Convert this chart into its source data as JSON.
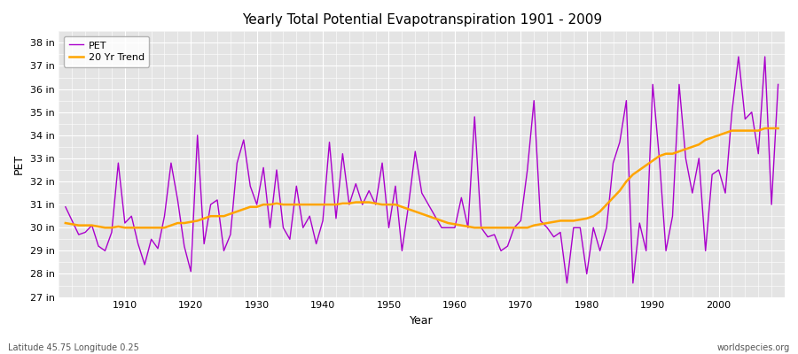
{
  "title": "Yearly Total Potential Evapotranspiration 1901 - 2009",
  "xlabel": "Year",
  "ylabel": "PET",
  "subtitle_left": "Latitude 45.75 Longitude 0.25",
  "subtitle_right": "worldspecies.org",
  "pet_color": "#AA00CC",
  "trend_color": "#FFA500",
  "fig_bg_color": "#FFFFFF",
  "plot_bg_color": "#E4E4E4",
  "ylim_min": 27,
  "ylim_max": 38.5,
  "xlim_min": 1900,
  "xlim_max": 2010,
  "yticks": [
    27,
    28,
    29,
    30,
    31,
    32,
    33,
    34,
    35,
    36,
    37,
    38
  ],
  "ytick_labels": [
    "27 in",
    "28 in",
    "29 in",
    "30 in",
    "31 in",
    "32 in",
    "33 in",
    "34 in",
    "35 in",
    "36 in",
    "37 in",
    "38 in"
  ],
  "xticks": [
    1910,
    1920,
    1930,
    1940,
    1950,
    1960,
    1970,
    1980,
    1990,
    2000
  ],
  "years": [
    1901,
    1902,
    1903,
    1904,
    1905,
    1906,
    1907,
    1908,
    1909,
    1910,
    1911,
    1912,
    1913,
    1914,
    1915,
    1916,
    1917,
    1918,
    1919,
    1920,
    1921,
    1922,
    1923,
    1924,
    1925,
    1926,
    1927,
    1928,
    1929,
    1930,
    1931,
    1932,
    1933,
    1934,
    1935,
    1936,
    1937,
    1938,
    1939,
    1940,
    1941,
    1942,
    1943,
    1944,
    1945,
    1946,
    1947,
    1948,
    1949,
    1950,
    1951,
    1952,
    1953,
    1954,
    1955,
    1956,
    1957,
    1958,
    1959,
    1960,
    1961,
    1962,
    1963,
    1964,
    1965,
    1966,
    1967,
    1968,
    1969,
    1970,
    1971,
    1972,
    1973,
    1974,
    1975,
    1976,
    1977,
    1978,
    1979,
    1980,
    1981,
    1982,
    1983,
    1984,
    1985,
    1986,
    1987,
    1988,
    1989,
    1990,
    1991,
    1992,
    1993,
    1994,
    1995,
    1996,
    1997,
    1998,
    1999,
    2000,
    2001,
    2002,
    2003,
    2004,
    2005,
    2006,
    2007,
    2008,
    2009
  ],
  "pet": [
    30.9,
    30.3,
    29.7,
    29.8,
    30.1,
    29.2,
    29.0,
    29.8,
    32.8,
    30.2,
    30.5,
    29.3,
    28.4,
    29.5,
    29.1,
    30.5,
    32.8,
    31.2,
    29.2,
    28.1,
    34.0,
    29.3,
    31.0,
    31.2,
    29.0,
    29.7,
    32.8,
    33.8,
    31.8,
    31.0,
    32.6,
    30.0,
    32.5,
    30.0,
    29.5,
    31.8,
    30.0,
    30.5,
    29.3,
    30.3,
    33.7,
    30.4,
    33.2,
    31.0,
    31.9,
    31.0,
    31.6,
    31.0,
    32.8,
    30.0,
    31.8,
    29.0,
    31.0,
    33.3,
    31.5,
    31.0,
    30.5,
    30.0,
    30.0,
    30.0,
    31.3,
    30.0,
    34.8,
    30.0,
    29.6,
    29.7,
    29.0,
    29.2,
    30.0,
    30.3,
    32.5,
    35.5,
    30.3,
    30.0,
    29.6,
    29.8,
    27.6,
    30.0,
    30.0,
    28.0,
    30.0,
    29.0,
    30.0,
    32.8,
    33.7,
    35.5,
    27.6,
    30.2,
    29.0,
    36.2,
    33.0,
    29.0,
    30.5,
    36.2,
    33.0,
    31.5,
    33.0,
    29.0,
    32.3,
    32.5,
    31.5,
    35.0,
    37.4,
    34.7,
    35.0,
    33.2,
    37.4,
    31.0,
    36.2
  ],
  "trend": [
    30.2,
    30.15,
    30.1,
    30.1,
    30.1,
    30.05,
    30.0,
    30.0,
    30.05,
    30.0,
    30.0,
    30.0,
    30.0,
    30.0,
    30.0,
    30.0,
    30.1,
    30.2,
    30.2,
    30.25,
    30.3,
    30.4,
    30.5,
    30.5,
    30.5,
    30.6,
    30.7,
    30.8,
    30.9,
    30.9,
    31.0,
    31.0,
    31.05,
    31.0,
    31.0,
    31.0,
    31.0,
    31.0,
    31.0,
    31.0,
    31.0,
    31.0,
    31.05,
    31.05,
    31.1,
    31.1,
    31.1,
    31.05,
    31.0,
    31.0,
    31.0,
    30.9,
    30.8,
    30.7,
    30.6,
    30.5,
    30.4,
    30.3,
    30.2,
    30.15,
    30.1,
    30.05,
    30.0,
    30.0,
    30.0,
    30.0,
    30.0,
    30.0,
    30.0,
    30.0,
    30.0,
    30.1,
    30.15,
    30.2,
    30.25,
    30.3,
    30.3,
    30.3,
    30.35,
    30.4,
    30.5,
    30.7,
    31.0,
    31.3,
    31.6,
    32.0,
    32.3,
    32.5,
    32.7,
    32.9,
    33.1,
    33.2,
    33.2,
    33.3,
    33.4,
    33.5,
    33.6,
    33.8,
    33.9,
    34.0,
    34.1,
    34.2,
    34.2,
    34.2,
    34.2,
    34.2,
    34.3,
    34.3,
    34.3
  ]
}
